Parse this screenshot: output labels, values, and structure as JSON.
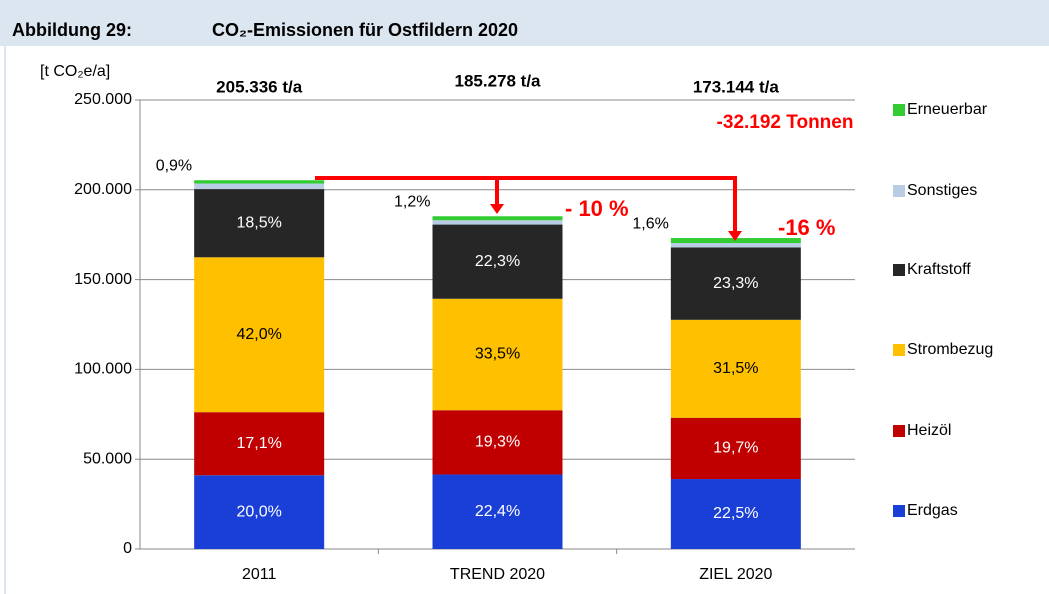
{
  "chart_data": {
    "type": "stacked_bar",
    "figure_label": "Abbildung 29:",
    "title": "CO₂-Emissionen für Ostfildern 2020",
    "y_axis_label": "[t CO₂e/a]",
    "categories": [
      "2011",
      "TREND 2020",
      "ZIEL 2020"
    ],
    "totals": [
      {
        "value": 205336,
        "label": "205.336  t/a"
      },
      {
        "value": 185278,
        "label": "185.278  t/a"
      },
      {
        "value": 173144,
        "label": "173.144  t/a"
      }
    ],
    "series": [
      {
        "name": "Erdgas",
        "color": "#1a3fd6",
        "text_color": "#ffffff",
        "values": [
          41067,
          41502,
          38957
        ],
        "value_labels": [
          "20,0%",
          "22,4%",
          "22,5%"
        ]
      },
      {
        "name": "Heizöl",
        "color": "#c00000",
        "text_color": "#ffffff",
        "values": [
          35112,
          35759,
          34109
        ],
        "value_labels": [
          "17,1%",
          "19,3%",
          "19,7%"
        ]
      },
      {
        "name": "Strombezug",
        "color": "#ffc000",
        "text_color": "#000000",
        "values": [
          86241,
          62068,
          54540
        ],
        "value_labels": [
          "42,0%",
          "33,5%",
          "31,5%"
        ]
      },
      {
        "name": "Kraftstoff",
        "color": "#262626",
        "text_color": "#ffffff",
        "values": [
          37987,
          41317,
          40343
        ],
        "value_labels": [
          "18,5%",
          "22,3%",
          "23,3%"
        ]
      },
      {
        "name": "Sonstiges",
        "color": "#b8cce4",
        "values": [
          3080,
          2409,
          2424
        ]
      },
      {
        "name": "Erneuerbar",
        "color": "#33cc33",
        "text_color": "#000000",
        "label_outside": true,
        "values": [
          1848,
          2223,
          2770
        ],
        "value_labels": [
          "0,9%",
          "1,2%",
          "1,6%"
        ]
      }
    ],
    "annotations": [
      "-32.192 Tonnen",
      "- 10 %",
      "-16 %"
    ],
    "ylim": [
      0,
      250000
    ],
    "yticks": [
      0,
      {
        "value": 50000,
        "label": "50.000"
      },
      {
        "value": 100000,
        "label": "100.000"
      },
      {
        "value": 150000,
        "label": "150.000"
      },
      {
        "value": 200000,
        "label": "200.000"
      },
      {
        "value": 250000,
        "label": "250.000"
      }
    ],
    "grid": true,
    "legend": "right"
  }
}
